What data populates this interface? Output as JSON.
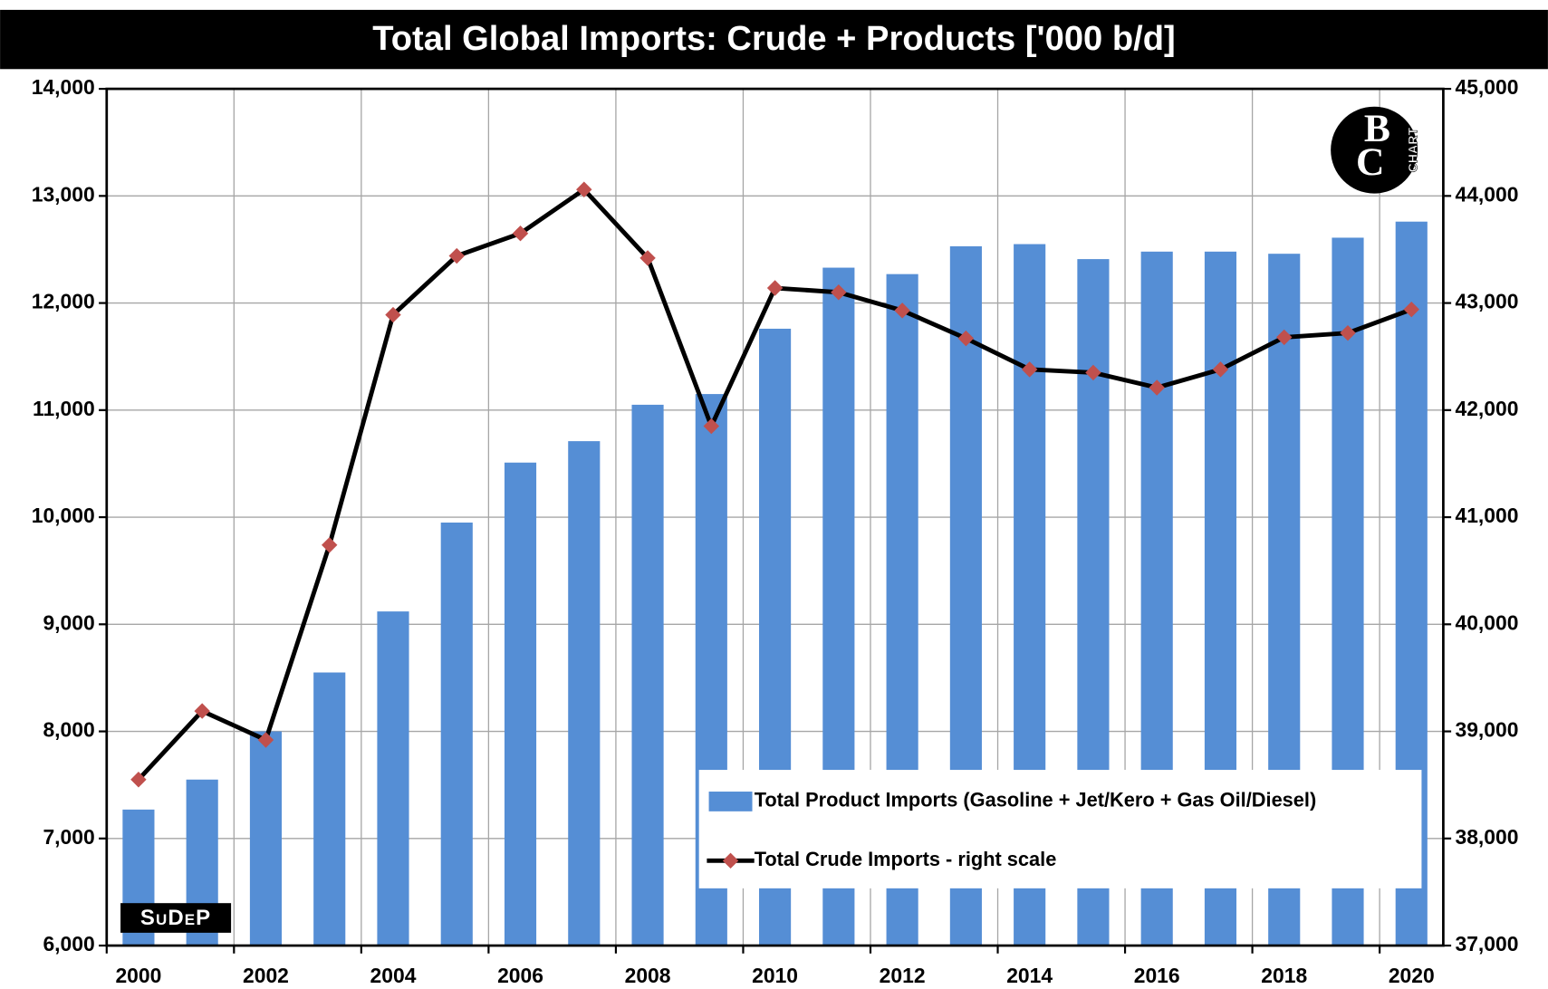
{
  "chart_data": {
    "type": "bar_line",
    "title": "Total Global Imports: Crude + Products ['000 b/d]",
    "categories": [
      "2000",
      null,
      "2002",
      null,
      "2004",
      null,
      "2006",
      null,
      "2008",
      null,
      "2010",
      null,
      "2012",
      null,
      "2014",
      null,
      "2016",
      null,
      "2018",
      null,
      "2020"
    ],
    "series": [
      {
        "name": "Total Product Imports (Gasoline + Jet/Kero + Gas Oil/Diesel)",
        "type": "bar",
        "color": "#558ed5",
        "values": [
          7270,
          7550,
          8000,
          8550,
          9120,
          9950,
          10510,
          10710,
          11050,
          11150,
          11760,
          12330,
          12270,
          12530,
          12550,
          12410,
          12480,
          12480,
          12460,
          12610,
          12760
        ]
      },
      {
        "name": "Total Crude Imports - right scale",
        "type": "line",
        "axis": "y2",
        "color": "#000000",
        "marker_color": "#c0504d",
        "values": [
          38550,
          39190,
          38920,
          40740,
          42890,
          43440,
          43650,
          44060,
          43420,
          41850,
          43140,
          43100,
          42930,
          42670,
          42380,
          42350,
          42210,
          42380,
          42680,
          42720,
          42940
        ]
      }
    ],
    "ylim": [
      6000,
      14000
    ],
    "yticks": [
      {
        "value": 6000,
        "label": "6,000"
      },
      {
        "value": 7000,
        "label": "7,000"
      },
      {
        "value": 8000,
        "label": "8,000"
      },
      {
        "value": 9000,
        "label": "9,000"
      },
      {
        "value": 10000,
        "label": "10,000"
      },
      {
        "value": 11000,
        "label": "11,000"
      },
      {
        "value": 12000,
        "label": "12,000"
      },
      {
        "value": 13000,
        "label": "13,000"
      },
      {
        "value": 14000,
        "label": "14,000"
      }
    ],
    "y2lim": [
      37000,
      45000
    ],
    "y2ticks": [
      {
        "value": 37000,
        "label": "37,000"
      },
      {
        "value": 38000,
        "label": "38,000"
      },
      {
        "value": 39000,
        "label": "39,000"
      },
      {
        "value": 40000,
        "label": "40,000"
      },
      {
        "value": 41000,
        "label": "41,000"
      },
      {
        "value": 42000,
        "label": "42,000"
      },
      {
        "value": 43000,
        "label": "43,000"
      },
      {
        "value": 44000,
        "label": "44,000"
      },
      {
        "value": 45000,
        "label": "45,000"
      }
    ],
    "grid": true,
    "legend": "lower right",
    "logo_text": [
      "B",
      "C",
      "CHART"
    ],
    "watermark": "SuDeP"
  }
}
